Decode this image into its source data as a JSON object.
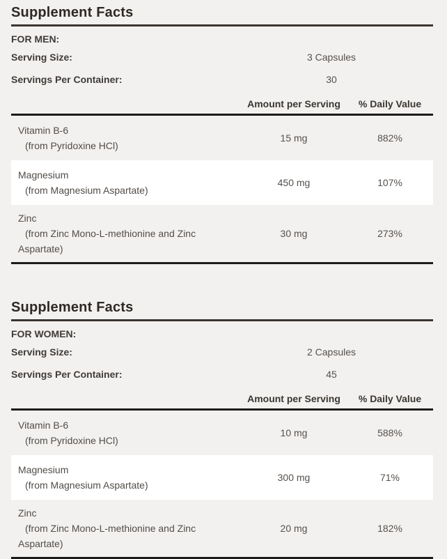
{
  "page": {
    "background_color": "#f3f1ef",
    "stripe_color": "#ffffff",
    "rule_color": "#1d1a18"
  },
  "panels": [
    {
      "title": "Supplement Facts",
      "audience": "FOR MEN:",
      "serving_size_label": "Serving Size:",
      "serving_size_value": "3 Capsules",
      "servings_per_container_label": "Servings Per Container:",
      "servings_per_container_value": "30",
      "amount_header": "Amount per Serving",
      "daily_value_header": "% Daily Value",
      "rows": [
        {
          "name": "Vitamin B-6",
          "source": "(from Pyridoxine HCl)",
          "amount": "15 mg",
          "daily_value": "882%"
        },
        {
          "name": "Magnesium",
          "source": "(from Magnesium Aspartate)",
          "amount": "450 mg",
          "daily_value": "107%"
        },
        {
          "name": "Zinc",
          "source": "(from Zinc Mono-L-methionine and Zinc Aspartate)",
          "amount": "30 mg",
          "daily_value": "273%"
        }
      ]
    },
    {
      "title": "Supplement Facts",
      "audience": "FOR WOMEN:",
      "serving_size_label": "Serving Size:",
      "serving_size_value": "2 Capsules",
      "servings_per_container_label": "Servings Per Container:",
      "servings_per_container_value": "45",
      "amount_header": "Amount per Serving",
      "daily_value_header": "% Daily Value",
      "rows": [
        {
          "name": "Vitamin B-6",
          "source": "(from Pyridoxine HCl)",
          "amount": "10 mg",
          "daily_value": "588%"
        },
        {
          "name": "Magnesium",
          "source": "(from Magnesium Aspartate)",
          "amount": "300 mg",
          "daily_value": "71%"
        },
        {
          "name": "Zinc",
          "source": "(from Zinc Mono-L-methionine and Zinc Aspartate)",
          "amount": "20 mg",
          "daily_value": "182%"
        }
      ]
    }
  ]
}
